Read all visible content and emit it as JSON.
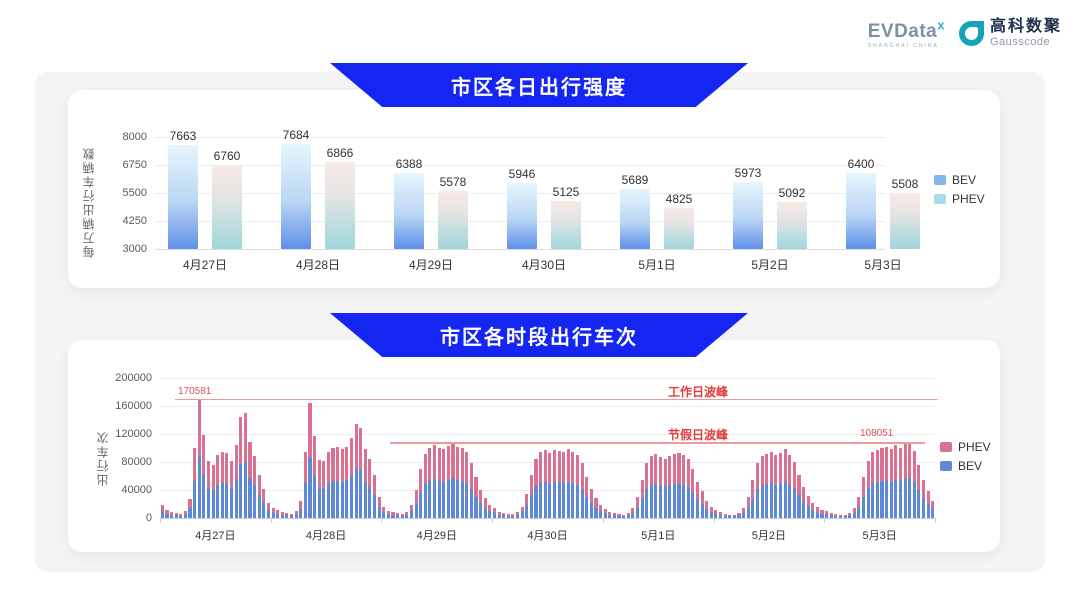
{
  "header": {
    "evdata_logo": "EVData",
    "evdata_sup": "x",
    "evdata_tagline": "SHANGHAI CHINA",
    "gausscode_cn": "高科数聚",
    "gausscode_en": "Gausscode"
  },
  "colors": {
    "banner_blue": "#1626f2",
    "bev_bar_gradient": [
      "#e7f6fd",
      "#5f8fe8"
    ],
    "phev_bar_gradient": [
      "#f8eae6",
      "#9fd6da"
    ],
    "bev_stack": "#5d89d6",
    "phev_stack": "#da7190",
    "ref_line": "#ef9a9a",
    "ref_text": "#e23c3c",
    "legend1_bev": "#85b4ea",
    "legend1_phev": "#a8dbe8"
  },
  "chart_data": [
    {
      "type": "bar",
      "title": "市区各日出行强度",
      "ylabel": "每万辆出行车辆数",
      "yticks": [
        8000,
        6750,
        5500,
        4250,
        3000
      ],
      "ylim": [
        3000,
        8000
      ],
      "grid": true,
      "legend_position": "right",
      "categories": [
        "4月27日",
        "4月28日",
        "4月29日",
        "4月30日",
        "5月1日",
        "5月2日",
        "5月3日"
      ],
      "series": [
        {
          "name": "BEV",
          "values": [
            7663,
            7684,
            6388,
            5946,
            5689,
            5973,
            6400
          ]
        },
        {
          "name": "PHEV",
          "values": [
            6760,
            6866,
            5578,
            5125,
            4825,
            5092,
            5508
          ]
        }
      ]
    },
    {
      "type": "bar",
      "subtype": "stacked-hourly",
      "title": "市区各时段出行车次",
      "ylabel": "出行车次",
      "yticks": [
        200000,
        160000,
        120000,
        80000,
        40000,
        0
      ],
      "ylim": [
        0,
        200000
      ],
      "grid": true,
      "legend_position": "right",
      "legend_order": [
        "PHEV",
        "BEV"
      ],
      "annotations": [
        {
          "label": "工作日波峰",
          "value": 170581,
          "value_label": "170581"
        },
        {
          "label": "节假日波峰",
          "value": 108051,
          "value_label": "108051"
        }
      ],
      "days": [
        {
          "date": "4月27日",
          "bev": [
            9500,
            6400,
            4800,
            3700,
            3200,
            5300,
            14300,
            53000,
            90408,
            63100,
            42900,
            40300,
            47700,
            50400,
            49300,
            43500,
            55700,
            76900,
            79500,
            57200,
            46600,
            32900,
            22300,
            11700
          ],
          "phev": [
            8500,
            5600,
            4200,
            3300,
            2800,
            4700,
            12700,
            47000,
            80173,
            55900,
            38100,
            35700,
            42300,
            44600,
            43700,
            38500,
            49300,
            68100,
            70500,
            50800,
            41400,
            29100,
            19700,
            10300
          ]
        },
        {
          "date": "4月28日",
          "bev": [
            8000,
            5800,
            4200,
            3700,
            3200,
            5300,
            13300,
            50400,
            86900,
            62000,
            44000,
            43500,
            50400,
            53000,
            53500,
            51900,
            54100,
            61000,
            71000,
            68400,
            51900,
            44500,
            32900,
            15900
          ],
          "phev": [
            7000,
            5200,
            3800,
            3300,
            2800,
            4700,
            11700,
            44600,
            77100,
            55000,
            39000,
            38500,
            44600,
            47000,
            47500,
            46100,
            47900,
            54000,
            63000,
            60600,
            46100,
            39500,
            29100,
            14100
          ]
        },
        {
          "date": "4月29日",
          "bev": [
            8500,
            5300,
            4200,
            3700,
            3200,
            4800,
            9500,
            21200,
            37100,
            48800,
            53000,
            55100,
            53000,
            51900,
            54600,
            56700,
            54100,
            53000,
            50400,
            41300,
            30700,
            21200,
            14800,
            9500
          ],
          "phev": [
            7500,
            4700,
            3800,
            3300,
            2800,
            4200,
            8500,
            18800,
            32900,
            43200,
            47000,
            48900,
            47000,
            46100,
            48400,
            50300,
            47900,
            47000,
            44600,
            36700,
            27300,
            18800,
            13200,
            8500
          ]
        },
        {
          "date": "4月30日",
          "bev": [
            7400,
            4800,
            3700,
            3200,
            3200,
            4200,
            8500,
            18600,
            32900,
            45100,
            50400,
            51400,
            49300,
            51400,
            50900,
            50400,
            51900,
            50400,
            47700,
            41300,
            30700,
            22300,
            14800,
            9500
          ],
          "phev": [
            6600,
            4200,
            3300,
            2800,
            2800,
            3800,
            7500,
            16400,
            29100,
            39900,
            44600,
            45600,
            43700,
            45600,
            45100,
            44600,
            46100,
            44600,
            42300,
            36700,
            27300,
            19700,
            13200,
            8500
          ]
        },
        {
          "date": "5月1日",
          "bev": [
            6900,
            4200,
            3700,
            3200,
            2700,
            3700,
            7400,
            15900,
            29200,
            41300,
            46600,
            48200,
            46100,
            45100,
            46600,
            48200,
            49300,
            47700,
            44500,
            37100,
            27600,
            20100,
            13300,
            8500
          ],
          "phev": [
            6100,
            3800,
            3300,
            2800,
            2300,
            3300,
            6600,
            14100,
            25800,
            36700,
            41400,
            42800,
            40900,
            39900,
            41400,
            42800,
            43700,
            42300,
            39500,
            32900,
            24400,
            17900,
            11700,
            7500
          ]
        },
        {
          "date": "5月2日",
          "bev": [
            6400,
            4200,
            3200,
            2700,
            2700,
            3700,
            7400,
            15900,
            29200,
            41300,
            46600,
            48800,
            50400,
            47700,
            49300,
            51900,
            47700,
            42400,
            32900,
            23900,
            17000,
            11700,
            8500,
            6400
          ],
          "phev": [
            5600,
            3800,
            2800,
            2300,
            2300,
            3300,
            6600,
            14100,
            25800,
            36700,
            41400,
            43200,
            44600,
            42300,
            43700,
            46100,
            42300,
            37600,
            29100,
            21100,
            15000,
            10300,
            7500,
            5600
          ]
        },
        {
          "date": "5月3日",
          "bev": [
            5300,
            3700,
            3200,
            2700,
            2700,
            3700,
            7400,
            15900,
            30700,
            43500,
            49800,
            51400,
            53000,
            54100,
            51900,
            55100,
            53000,
            56200,
            57267,
            50900,
            40300,
            29200,
            20100,
            12700
          ],
          "phev": [
            4700,
            3300,
            2800,
            2300,
            2300,
            3300,
            6600,
            14100,
            27300,
            38500,
            44200,
            45600,
            47000,
            47900,
            46100,
            48900,
            47000,
            49800,
            50784,
            45100,
            35700,
            25800,
            17900,
            11300
          ]
        }
      ]
    }
  ]
}
